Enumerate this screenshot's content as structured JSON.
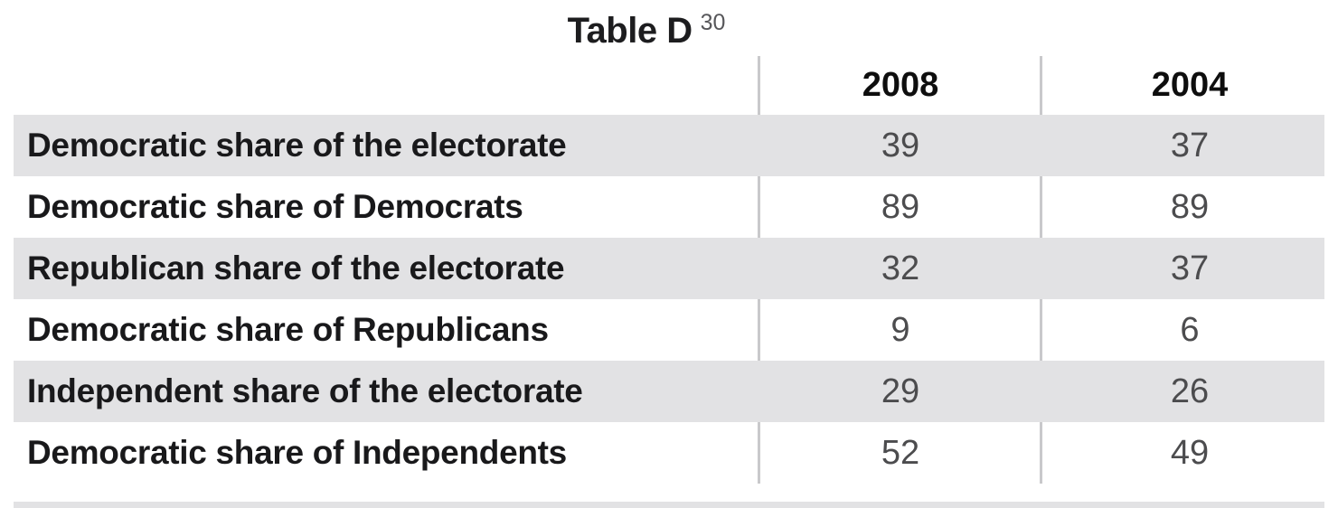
{
  "title": {
    "text": "Table D",
    "footnote_marker": "30"
  },
  "colors": {
    "background": "#ffffff",
    "row_stripe": "#e2e2e4",
    "divider": "#c9c9cb",
    "label_text": "#19191b",
    "value_text": "#4c4c4e",
    "header_text": "#0e0e0e",
    "footnote_text": "#57575a"
  },
  "table": {
    "column_headers": [
      "2008",
      "2004"
    ],
    "rows": [
      {
        "label": "Democratic share of the electorate",
        "values": [
          "39",
          "37"
        ]
      },
      {
        "label": "Democratic share of Democrats",
        "values": [
          "89",
          "89"
        ]
      },
      {
        "label": "Republican share of the electorate",
        "values": [
          "32",
          "37"
        ]
      },
      {
        "label": "Democratic share of Republicans",
        "values": [
          "9",
          "6"
        ]
      },
      {
        "label": "Independent share of the electorate",
        "values": [
          "29",
          "26"
        ]
      },
      {
        "label": "Democratic share of Independents",
        "values": [
          "52",
          "49"
        ]
      }
    ]
  },
  "chart_data": {
    "type": "table",
    "title": "Table D",
    "footnote_marker": "30",
    "columns": [
      "",
      "2008",
      "2004"
    ],
    "row_labels": [
      "Democratic share of the electorate",
      "Democratic share of Democrats",
      "Republican share of the electorate",
      "Democratic share of Republicans",
      "Independent share of the electorate",
      "Democratic share of Independents"
    ],
    "series": [
      {
        "name": "2008",
        "values": [
          39,
          89,
          32,
          9,
          29,
          52
        ]
      },
      {
        "name": "2004",
        "values": [
          37,
          89,
          37,
          6,
          26,
          49
        ]
      }
    ],
    "layout": {
      "striped_rows": "rows 1,3,5 shaded light gray",
      "column_dividers": true,
      "values_are_percentages": true
    }
  }
}
